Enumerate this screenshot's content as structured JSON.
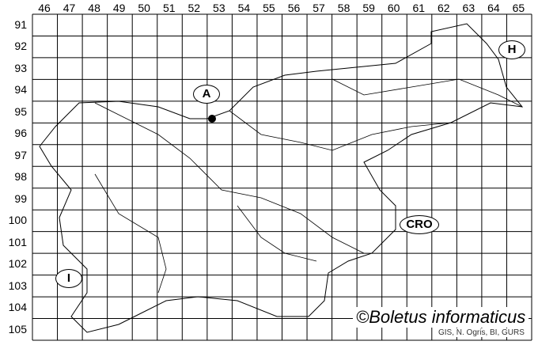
{
  "map": {
    "columns": [
      "46",
      "47",
      "48",
      "49",
      "50",
      "51",
      "52",
      "53",
      "54",
      "55",
      "56",
      "57",
      "58",
      "59",
      "60",
      "61",
      "62",
      "63",
      "64",
      "65"
    ],
    "rows": [
      "91",
      "92",
      "93",
      "94",
      "95",
      "96",
      "97",
      "98",
      "99",
      "100",
      "101",
      "102",
      "103",
      "104",
      "105"
    ],
    "neighbor_labels": {
      "austria": "A",
      "hungary": "H",
      "croatia": "CRO",
      "italy": "I"
    },
    "record_marker": {
      "column": "52",
      "row": "96"
    },
    "copyright": "©Boletus informaticus",
    "credit": "GIS, N. Ogris, BI, GURS"
  }
}
